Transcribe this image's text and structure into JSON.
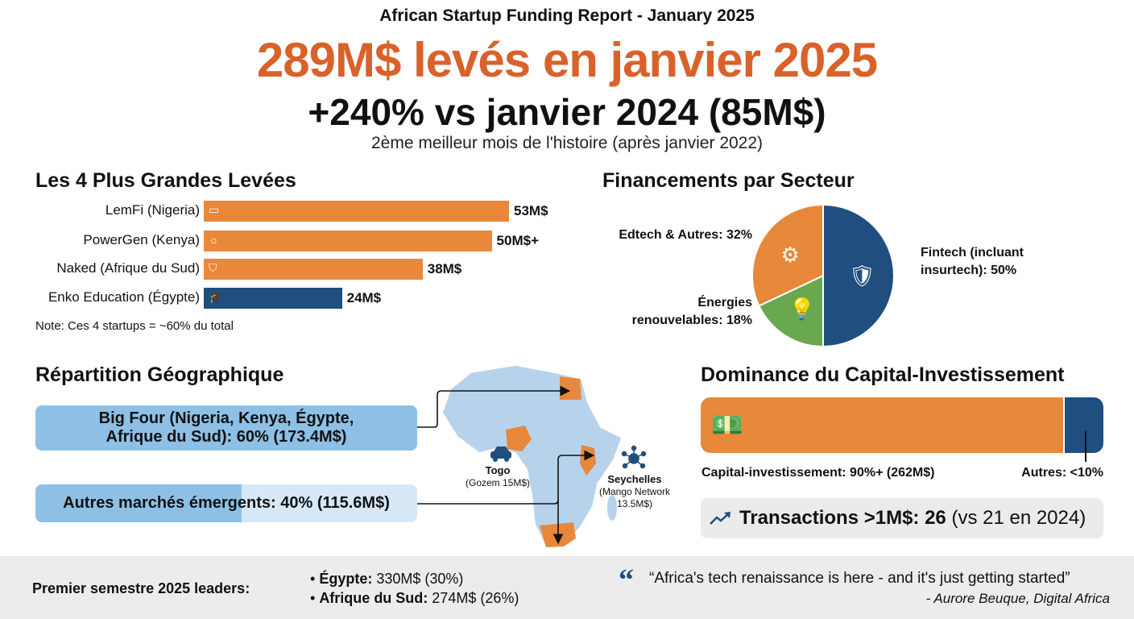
{
  "header": {
    "report_title": "African Startup Funding Report - January 2025",
    "headline": "289M$ levés en janvier 2025",
    "growth": "+240% vs janvier 2024 (85M$)",
    "subtitle": "2ème meilleur mois de l'histoire (après janvier 2022)"
  },
  "colors": {
    "orange": "#e8883a",
    "headline_orange": "#d9622b",
    "blue": "#1f4e7f",
    "green": "#6aa84f",
    "light_blue": "#8ec0e6"
  },
  "chart_data": [
    {
      "type": "bar",
      "title": "Les 4 Plus Grandes Levées",
      "orientation": "horizontal",
      "categories": [
        "LemFi (Nigeria)",
        "PowerGen (Kenya)",
        "Naked (Afrique du Sud)",
        "Enko Education (Égypte)"
      ],
      "values": [
        53,
        50,
        38,
        24
      ],
      "data_labels": [
        "53M$",
        "50M$+",
        "38M$",
        "24M$"
      ],
      "icons": [
        "wallet-icon",
        "lightbulb-icon",
        "shield-icon",
        "graduation-cap-icon"
      ],
      "bar_colors": [
        "#e8883a",
        "#e8883a",
        "#e8883a",
        "#1f4e7f"
      ],
      "note": "Note: Ces 4 startups = ~60% du total"
    },
    {
      "type": "pie",
      "title": "Financements par Secteur",
      "slices": [
        {
          "label": "Fintech (incluant insurtech): 50%",
          "value": 50,
          "color": "#1f4e7f",
          "icon": "wallet-shield-icon"
        },
        {
          "label": "Énergies renouvelables: 18%",
          "value": 18,
          "color": "#6aa84f",
          "icon": "lightbulb-icon"
        },
        {
          "label": "Edtech & Autres: 32%",
          "value": 32,
          "color": "#e8883a",
          "icon": "graduation-cap-gears-icon"
        }
      ]
    },
    {
      "type": "bar",
      "title": "Dominance du Capital-Investissement",
      "orientation": "stacked-horizontal",
      "series": [
        {
          "name": "Capital-investissement: 90%+ (262M$)",
          "value": 90,
          "color": "#e8883a"
        },
        {
          "name": "Autres: <10%",
          "value": 10,
          "color": "#1f4e7f"
        }
      ]
    }
  ],
  "geo": {
    "title": "Répartition Géographique",
    "big_four": {
      "line1": "Big Four (Nigeria, Kenya, Égypte,",
      "line2": "Afrique du Sud): 60% (173.4M$)",
      "percent": 60
    },
    "others": {
      "label": "Autres marchés émergents: 40% (115.6M$)",
      "percent": 40
    },
    "togo": {
      "name": "Togo",
      "detail": "(Gozem 15M$)"
    },
    "seychelles": {
      "name": "Seychelles",
      "detail1": "(Mango Network",
      "detail2": "13.5M$)"
    }
  },
  "transactions": {
    "label": "Transactions >1M$: 26",
    "suffix": " (vs 21 en 2024)"
  },
  "footer": {
    "leaders_title": "Premier semestre 2025 leaders:",
    "leaders": [
      {
        "country": "Égypte:",
        "value": " 330M$ (30%)"
      },
      {
        "country": "Afrique du Sud:",
        "value": " 274M$ (26%)"
      }
    ],
    "quote": "“Africa's tech renaissance is here - and it's just getting started”",
    "attribution": "- Aurore Beuque, Digital Africa"
  }
}
